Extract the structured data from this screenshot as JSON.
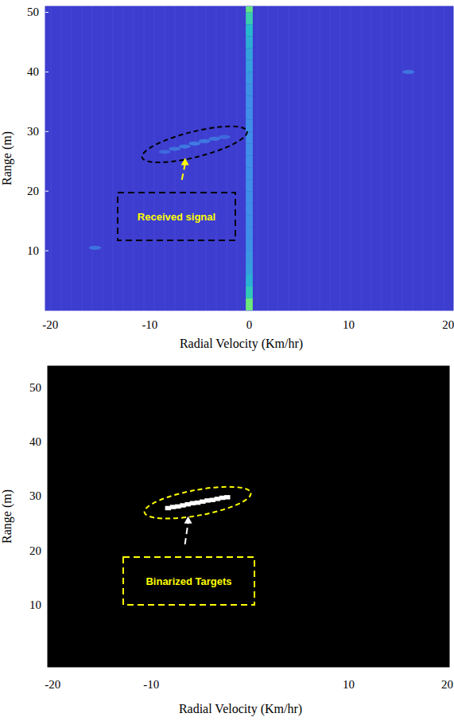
{
  "chart_data": [
    {
      "type": "heatmap",
      "xlabel": "Radial Velocity (Km/hr)",
      "ylabel": "Range (m)",
      "annotations": [
        "Received signal"
      ],
      "xlim": [
        -20.5,
        20.5
      ],
      "ylim": [
        0,
        51
      ],
      "xticks": [
        -20,
        -10,
        0,
        10,
        20
      ],
      "yticks": [
        10,
        20,
        30,
        40,
        50
      ],
      "clim": [
        0,
        1
      ],
      "x": [
        0,
        0,
        0,
        0,
        0,
        0,
        0,
        0,
        0,
        0,
        0,
        0,
        0,
        0,
        0,
        0,
        0,
        0,
        0,
        0,
        0,
        0,
        0,
        0,
        0,
        0,
        -8.5,
        -7.5,
        -6.5,
        -5.5,
        -4.5,
        -3.5,
        -2.5,
        -15.5,
        16
      ],
      "y": [
        1,
        3,
        5,
        7,
        9,
        11,
        13,
        15,
        17,
        19,
        21,
        23,
        25,
        27,
        29,
        31,
        33,
        35,
        37,
        39,
        41,
        43,
        45,
        47,
        49,
        51,
        26.6,
        27.1,
        27.5,
        28,
        28.4,
        28.8,
        29.1,
        10.5,
        40
      ],
      "values": [
        0.95,
        0.75,
        0.6,
        0.5,
        0.45,
        0.42,
        0.4,
        0.4,
        0.4,
        0.4,
        0.4,
        0.4,
        0.4,
        0.4,
        0.4,
        0.4,
        0.4,
        0.4,
        0.42,
        0.45,
        0.5,
        0.52,
        0.58,
        0.65,
        0.78,
        0.92,
        0.25,
        0.3,
        0.33,
        0.35,
        0.33,
        0.3,
        0.25,
        0.3,
        0.32
      ]
    },
    {
      "type": "heatmap",
      "xlabel": "Radial Velocity (Km/hr)",
      "ylabel": "Range (m)",
      "annotations": [
        "Binarized Targets"
      ],
      "color": "#ffffff",
      "xlim": [
        -20.5,
        20.2
      ],
      "ylim": [
        -1.5,
        54
      ],
      "xticks": [
        -20,
        -10,
        10,
        20
      ],
      "yticks": [
        10,
        20,
        30,
        40,
        50
      ],
      "x": [
        -8.3,
        -7.8,
        -7.3,
        -6.8,
        -6.3,
        -5.8,
        -5.3,
        -4.8,
        -4.3,
        -3.8,
        -3.3,
        -2.8,
        -2.3
      ],
      "y": [
        27.8,
        28.0,
        28.1,
        28.3,
        28.5,
        28.7,
        28.8,
        29.0,
        29.2,
        29.3,
        29.5,
        29.7,
        29.8
      ],
      "values": [
        1,
        1,
        1,
        1,
        1,
        1,
        1,
        1,
        1,
        1,
        1,
        1,
        1
      ]
    }
  ]
}
